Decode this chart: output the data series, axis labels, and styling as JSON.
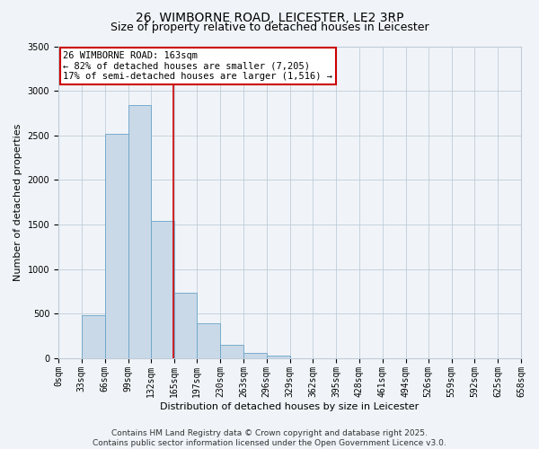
{
  "title": "26, WIMBORNE ROAD, LEICESTER, LE2 3RP",
  "subtitle": "Size of property relative to detached houses in Leicester",
  "bar_values": [
    0,
    480,
    2520,
    2840,
    1540,
    740,
    390,
    150,
    65,
    30,
    0,
    0,
    0,
    0,
    0,
    0,
    0,
    0,
    0,
    0
  ],
  "bin_edges": [
    0,
    33,
    66,
    99,
    132,
    165,
    197,
    230,
    263,
    296,
    329,
    362,
    395,
    428,
    461,
    494,
    526,
    559,
    592,
    625,
    658
  ],
  "bin_labels": [
    "0sqm",
    "33sqm",
    "66sqm",
    "99sqm",
    "132sqm",
    "165sqm",
    "197sqm",
    "230sqm",
    "263sqm",
    "296sqm",
    "329sqm",
    "362sqm",
    "395sqm",
    "428sqm",
    "461sqm",
    "494sqm",
    "526sqm",
    "559sqm",
    "592sqm",
    "625sqm",
    "658sqm"
  ],
  "bar_color": "#c9d9e8",
  "bar_edge_color": "#6aa3c8",
  "bar_edge_width": 0.6,
  "vline_x": 163,
  "vline_color": "#cc0000",
  "ylabel": "Number of detached properties",
  "xlabel": "Distribution of detached houses by size in Leicester",
  "ylim": [
    0,
    3500
  ],
  "yticks": [
    0,
    500,
    1000,
    1500,
    2000,
    2500,
    3000,
    3500
  ],
  "annotation_title": "26 WIMBORNE ROAD: 163sqm",
  "annotation_line1": "← 82% of detached houses are smaller (7,205)",
  "annotation_line2": "17% of semi-detached houses are larger (1,516) →",
  "annotation_box_color": "#ffffff",
  "annotation_box_edge_color": "#cc0000",
  "footer_line1": "Contains HM Land Registry data © Crown copyright and database right 2025.",
  "footer_line2": "Contains public sector information licensed under the Open Government Licence v3.0.",
  "background_color": "#f0f4f8",
  "grid_color": "#c0ccd8",
  "title_fontsize": 10,
  "subtitle_fontsize": 9,
  "axis_label_fontsize": 8,
  "tick_fontsize": 7,
  "annotation_fontsize": 7.5,
  "footer_fontsize": 6.5
}
